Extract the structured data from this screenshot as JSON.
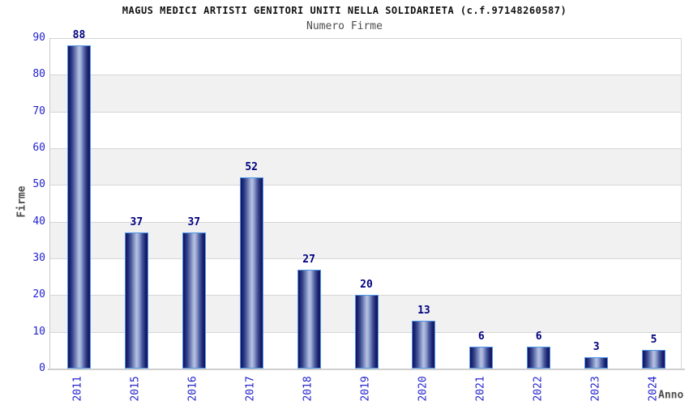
{
  "title": "MAGUS MEDICI ARTISTI GENITORI UNITI NELLA SOLIDARIETA (c.f.97148260587)",
  "subtitle": "Numero Firme",
  "chart_data": {
    "type": "bar",
    "title": "MAGUS MEDICI ARTISTI GENITORI UNITI NELLA SOLIDARIETA (c.f.97148260587)",
    "subtitle": "Numero Firme",
    "categories": [
      "2011",
      "2015",
      "2016",
      "2017",
      "2018",
      "2019",
      "2020",
      "2021",
      "2022",
      "2023",
      "2024"
    ],
    "values": [
      88,
      37,
      37,
      52,
      27,
      20,
      13,
      6,
      6,
      3,
      5
    ],
    "xlabel": "Anno",
    "ylabel": "Firme",
    "ylim": [
      0,
      90
    ],
    "ytick_step": 10,
    "yticks": [
      0,
      10,
      20,
      30,
      40,
      50,
      60,
      70,
      80,
      90
    ],
    "grid": true,
    "background_bands": "alternating horizontal gray/white every 10 units",
    "legend": "none",
    "value_labels_shown": true
  },
  "colors": {
    "bar_dark": "#14145c",
    "bar_light": "#b7c2e2",
    "bar_border": "#4e96e8",
    "tick_label": "#2323cc",
    "value_label": "#000080",
    "gridline": "#d6d6d6",
    "band_fill": "#f1f1f1",
    "axis_line": "#cfcfcf",
    "title_color": "#111111",
    "subtitle_color": "#4d4d4d"
  }
}
